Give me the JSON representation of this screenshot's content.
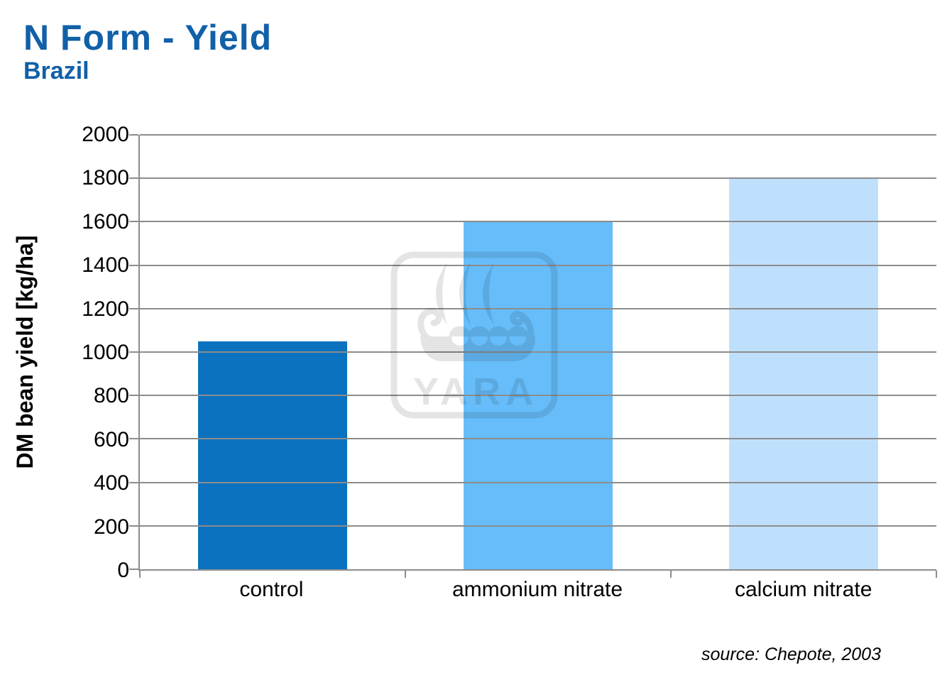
{
  "header": {
    "title": "N Form - Yield",
    "subtitle": "Brazil"
  },
  "source_note": "source: Chepote, 2003",
  "watermark": {
    "label": "YARA"
  },
  "colors": {
    "title_blue": "#1160A8",
    "grid_gray": "#8C8C8C",
    "watermark_gray": "#E4E4E4",
    "bar_colors": [
      "#0A72BF",
      "#66BDFA",
      "#BFE0FC"
    ]
  },
  "chart_data": {
    "type": "bar",
    "categories": [
      "control",
      "ammonium nitrate",
      "calcium nitrate"
    ],
    "values": [
      1050,
      1600,
      1800
    ],
    "title": "N Form - Yield",
    "subtitle": "Brazil",
    "xlabel": "",
    "ylabel": "DM bean yield [kg/ha]",
    "ylim": [
      0,
      2000
    ],
    "ytick_step": 200,
    "grid": true,
    "legend": false,
    "annotation": "source: Chepote, 2003"
  }
}
